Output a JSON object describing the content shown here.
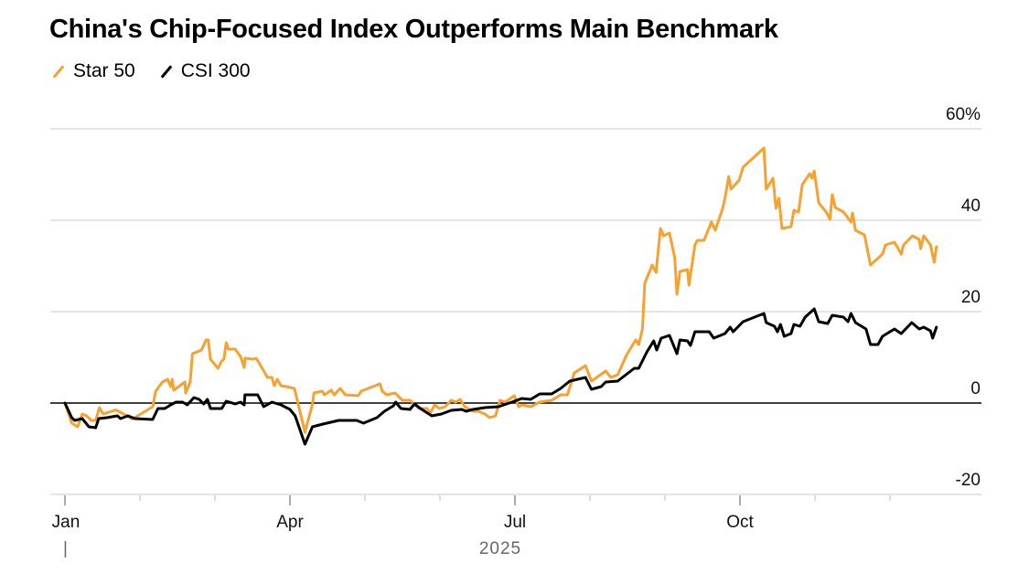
{
  "chart_data": {
    "type": "line",
    "title": "China's Chip-Focused Index Outperforms Main Benchmark",
    "xlabel": "2025",
    "ylabel": "",
    "x_units": "months since Jan 1, 2025",
    "xlim": [
      0,
      12
    ],
    "ylim": [
      -20,
      60
    ],
    "y_ticks": [
      {
        "value": 60,
        "label": "60%"
      },
      {
        "value": 40,
        "label": "40"
      },
      {
        "value": 20,
        "label": "20"
      },
      {
        "value": 0,
        "label": "0"
      },
      {
        "value": -20,
        "label": "-20"
      }
    ],
    "x_ticks": [
      {
        "value": 0,
        "label": "Jan"
      },
      {
        "value": 3,
        "label": "Apr"
      },
      {
        "value": 6,
        "label": "Jul"
      },
      {
        "value": 9,
        "label": "Oct"
      }
    ],
    "year_label": "2025",
    "year_marker": "|",
    "grid": true,
    "legend_position": "top-left",
    "series": [
      {
        "name": "Star 50",
        "color": "#f7a130",
        "points": [
          [
            0,
            0
          ],
          [
            0.09,
            -4.4
          ],
          [
            0.17,
            -5.2
          ],
          [
            0.23,
            -2.4
          ],
          [
            0.29,
            -2.8
          ],
          [
            0.35,
            -3.8
          ],
          [
            0.41,
            -3.8
          ],
          [
            0.46,
            -1
          ],
          [
            0.51,
            -2.4
          ],
          [
            0.68,
            -1.5
          ],
          [
            0.76,
            -2.2
          ],
          [
            0.9,
            -3.5
          ],
          [
            1.17,
            -0.8
          ],
          [
            1.21,
            2.6
          ],
          [
            1.3,
            4.6
          ],
          [
            1.37,
            5.2
          ],
          [
            1.41,
            3.6
          ],
          [
            1.43,
            5.2
          ],
          [
            1.45,
            2.8
          ],
          [
            1.6,
            4.6
          ],
          [
            1.61,
            2.2
          ],
          [
            1.67,
            4.6
          ],
          [
            1.7,
            10.8
          ],
          [
            1.82,
            11.6
          ],
          [
            1.88,
            13.8
          ],
          [
            1.91,
            13.8
          ],
          [
            1.94,
            9.6
          ],
          [
            2.04,
            7.6
          ],
          [
            2.09,
            9.2
          ],
          [
            2.12,
            9.6
          ],
          [
            2.15,
            13.2
          ],
          [
            2.18,
            11.8
          ],
          [
            2.27,
            11.8
          ],
          [
            2.34,
            10.2
          ],
          [
            2.39,
            7.8
          ],
          [
            2.4,
            9.8
          ],
          [
            2.51,
            9.6
          ],
          [
            2.55,
            9.8
          ],
          [
            2.63,
            7.6
          ],
          [
            2.7,
            5.6
          ],
          [
            2.76,
            5.6
          ],
          [
            2.79,
            3.8
          ],
          [
            2.83,
            5.2
          ],
          [
            2.88,
            3.8
          ],
          [
            2.95,
            3.6
          ],
          [
            3.06,
            3.2
          ],
          [
            3.2,
            -6.4
          ],
          [
            3.3,
            -0.2
          ],
          [
            3.32,
            2.2
          ],
          [
            3.43,
            2.6
          ],
          [
            3.46,
            1.8
          ],
          [
            3.55,
            2.8
          ],
          [
            3.59,
            1.8
          ],
          [
            3.67,
            3.2
          ],
          [
            3.74,
            1.8
          ],
          [
            3.91,
            1.6
          ],
          [
            3.95,
            2.6
          ],
          [
            4.2,
            4.2
          ],
          [
            4.23,
            2.6
          ],
          [
            4.29,
            1.8
          ],
          [
            4.4,
            2.2
          ],
          [
            4.5,
            0.6
          ],
          [
            4.6,
            0.6
          ],
          [
            4.66,
            -0.2
          ],
          [
            4.72,
            -1.2
          ],
          [
            4.83,
            -1.2
          ],
          [
            4.87,
            -2.2
          ],
          [
            4.93,
            -0.4
          ],
          [
            4.99,
            -1.2
          ],
          [
            5.07,
            -0.8
          ],
          [
            5.15,
            0.6
          ],
          [
            5.21,
            0.2
          ],
          [
            5.27,
            0.8
          ],
          [
            5.33,
            -0.8
          ],
          [
            5.44,
            -1.8
          ],
          [
            5.51,
            -1.8
          ],
          [
            5.6,
            -2.4
          ],
          [
            5.66,
            -3.2
          ],
          [
            5.74,
            -2.8
          ],
          [
            5.8,
            0.6
          ],
          [
            5.87,
            0.2
          ],
          [
            5.99,
            1.6
          ],
          [
            6.05,
            -0.8
          ],
          [
            6.09,
            -0.4
          ],
          [
            6.21,
            -0.8
          ],
          [
            6.33,
            0.2
          ],
          [
            6.49,
            0.6
          ],
          [
            6.61,
            1.8
          ],
          [
            6.7,
            1.8
          ],
          [
            6.79,
            6.6
          ],
          [
            6.94,
            8.2
          ],
          [
            7.02,
            4.8
          ],
          [
            7.21,
            7
          ],
          [
            7.28,
            5.6
          ],
          [
            7.37,
            6.2
          ],
          [
            7.49,
            10.6
          ],
          [
            7.61,
            13.8
          ],
          [
            7.65,
            12.8
          ],
          [
            7.7,
            16.2
          ],
          [
            7.73,
            26.2
          ],
          [
            7.83,
            30.2
          ],
          [
            7.88,
            28.6
          ],
          [
            7.94,
            38.2
          ],
          [
            7.98,
            36.6
          ],
          [
            8.06,
            37.2
          ],
          [
            8.13,
            31.8
          ],
          [
            8.16,
            23.8
          ],
          [
            8.2,
            28.8
          ],
          [
            8.3,
            29.2
          ],
          [
            8.32,
            25.8
          ],
          [
            8.4,
            34.6
          ],
          [
            8.43,
            35.6
          ],
          [
            8.52,
            35.6
          ],
          [
            8.62,
            39.6
          ],
          [
            8.67,
            37.8
          ],
          [
            8.77,
            42.6
          ],
          [
            8.8,
            44.8
          ],
          [
            8.85,
            49.6
          ],
          [
            8.88,
            46.8
          ],
          [
            8.99,
            48.8
          ],
          [
            9.04,
            51.6
          ],
          [
            9.32,
            55.8
          ],
          [
            9.35,
            46.8
          ],
          [
            9.44,
            49.2
          ],
          [
            9.48,
            42.6
          ],
          [
            9.52,
            44.8
          ],
          [
            9.56,
            38.2
          ],
          [
            9.68,
            38.6
          ],
          [
            9.72,
            42.2
          ],
          [
            9.78,
            41.8
          ],
          [
            9.83,
            47.8
          ],
          [
            9.93,
            50.2
          ],
          [
            9.96,
            49.2
          ],
          [
            9.99,
            50.8
          ],
          [
            10.05,
            43.8
          ],
          [
            10.15,
            41.8
          ],
          [
            10.2,
            40.2
          ],
          [
            10.23,
            45.6
          ],
          [
            10.27,
            42.8
          ],
          [
            10.38,
            41.8
          ],
          [
            10.48,
            39.6
          ],
          [
            10.5,
            41.6
          ],
          [
            10.54,
            37.8
          ],
          [
            10.66,
            36.8
          ],
          [
            10.74,
            30.2
          ],
          [
            10.9,
            32.6
          ],
          [
            10.94,
            34.6
          ],
          [
            11.06,
            35.2
          ],
          [
            11.15,
            32.6
          ],
          [
            11.18,
            34.6
          ],
          [
            11.3,
            36.6
          ],
          [
            11.39,
            35.8
          ],
          [
            11.41,
            33.8
          ],
          [
            11.45,
            36.6
          ],
          [
            11.54,
            34.6
          ],
          [
            11.59,
            30.8
          ],
          [
            11.62,
            34.2
          ]
        ]
      },
      {
        "name": "CSI 300",
        "color": "#000000",
        "points": [
          [
            0,
            0
          ],
          [
            0.09,
            -3.2
          ],
          [
            0.13,
            -3.8
          ],
          [
            0.23,
            -3.4
          ],
          [
            0.32,
            -5.2
          ],
          [
            0.41,
            -5.4
          ],
          [
            0.45,
            -3.4
          ],
          [
            0.56,
            -3.2
          ],
          [
            0.7,
            -2.8
          ],
          [
            0.74,
            -3.4
          ],
          [
            0.84,
            -2.8
          ],
          [
            0.93,
            -3.4
          ],
          [
            1.17,
            -3.6
          ],
          [
            1.24,
            -1.2
          ],
          [
            1.33,
            -1.2
          ],
          [
            1.41,
            -0.4
          ],
          [
            1.48,
            0.2
          ],
          [
            1.57,
            0.2
          ],
          [
            1.63,
            -0.4
          ],
          [
            1.72,
            1.2
          ],
          [
            1.79,
            0.8
          ],
          [
            1.85,
            -0.2
          ],
          [
            1.9,
            0.8
          ],
          [
            1.94,
            -1.2
          ],
          [
            2.09,
            -1.2
          ],
          [
            2.15,
            0.4
          ],
          [
            2.27,
            -0.2
          ],
          [
            2.34,
            0.2
          ],
          [
            2.39,
            -0.4
          ],
          [
            2.4,
            1.8
          ],
          [
            2.57,
            1.8
          ],
          [
            2.65,
            -0.8
          ],
          [
            2.76,
            0.2
          ],
          [
            2.88,
            -0.4
          ],
          [
            3,
            -1.4
          ],
          [
            3.07,
            -2.8
          ],
          [
            3.2,
            -9
          ],
          [
            3.3,
            -5.2
          ],
          [
            3.44,
            -4.6
          ],
          [
            3.65,
            -3.8
          ],
          [
            3.89,
            -3.8
          ],
          [
            3.98,
            -4.4
          ],
          [
            4.16,
            -3.2
          ],
          [
            4.26,
            -1.8
          ],
          [
            4.38,
            -0.6
          ],
          [
            4.41,
            0.2
          ],
          [
            4.48,
            -1.2
          ],
          [
            4.6,
            -1.4
          ],
          [
            4.66,
            -0.2
          ],
          [
            4.74,
            -1.2
          ],
          [
            4.89,
            -2.8
          ],
          [
            5.02,
            -2.4
          ],
          [
            5.15,
            -1.6
          ],
          [
            5.29,
            -1.4
          ],
          [
            5.35,
            -1.8
          ],
          [
            5.44,
            -1.4
          ],
          [
            5.6,
            -1
          ],
          [
            5.78,
            -0.8
          ],
          [
            5.96,
            0.2
          ],
          [
            6.09,
            1
          ],
          [
            6.21,
            0.8
          ],
          [
            6.33,
            2
          ],
          [
            6.49,
            2
          ],
          [
            6.61,
            3.2
          ],
          [
            6.73,
            4.8
          ],
          [
            6.94,
            5.6
          ],
          [
            7.02,
            3
          ],
          [
            7.15,
            3.6
          ],
          [
            7.21,
            4.6
          ],
          [
            7.37,
            4.8
          ],
          [
            7.59,
            7.6
          ],
          [
            7.65,
            7.6
          ],
          [
            7.76,
            11.2
          ],
          [
            7.85,
            13.6
          ],
          [
            7.89,
            11.6
          ],
          [
            7.95,
            14.2
          ],
          [
            8.06,
            14.8
          ],
          [
            8.16,
            10.8
          ],
          [
            8.2,
            13.8
          ],
          [
            8.3,
            13.6
          ],
          [
            8.34,
            12.6
          ],
          [
            8.4,
            15.6
          ],
          [
            8.59,
            15.6
          ],
          [
            8.65,
            14.2
          ],
          [
            8.8,
            15.2
          ],
          [
            8.87,
            16.6
          ],
          [
            8.91,
            15.6
          ],
          [
            9.04,
            17.8
          ],
          [
            9.32,
            19.6
          ],
          [
            9.35,
            17.6
          ],
          [
            9.46,
            16.8
          ],
          [
            9.5,
            15.6
          ],
          [
            9.54,
            17.2
          ],
          [
            9.59,
            14.6
          ],
          [
            9.68,
            15.2
          ],
          [
            9.72,
            17.2
          ],
          [
            9.8,
            16.8
          ],
          [
            9.87,
            18.8
          ],
          [
            9.99,
            20.6
          ],
          [
            10.05,
            17.8
          ],
          [
            10.17,
            17.4
          ],
          [
            10.23,
            19.2
          ],
          [
            10.38,
            18.8
          ],
          [
            10.44,
            17.8
          ],
          [
            10.48,
            19.6
          ],
          [
            10.54,
            17.6
          ],
          [
            10.68,
            16.2
          ],
          [
            10.74,
            12.8
          ],
          [
            10.84,
            12.8
          ],
          [
            10.9,
            14.6
          ],
          [
            11.06,
            16.2
          ],
          [
            11.15,
            15.2
          ],
          [
            11.29,
            17.6
          ],
          [
            11.39,
            16.2
          ],
          [
            11.45,
            16.6
          ],
          [
            11.54,
            15.8
          ],
          [
            11.57,
            14.2
          ],
          [
            11.62,
            16.6
          ]
        ]
      }
    ]
  }
}
